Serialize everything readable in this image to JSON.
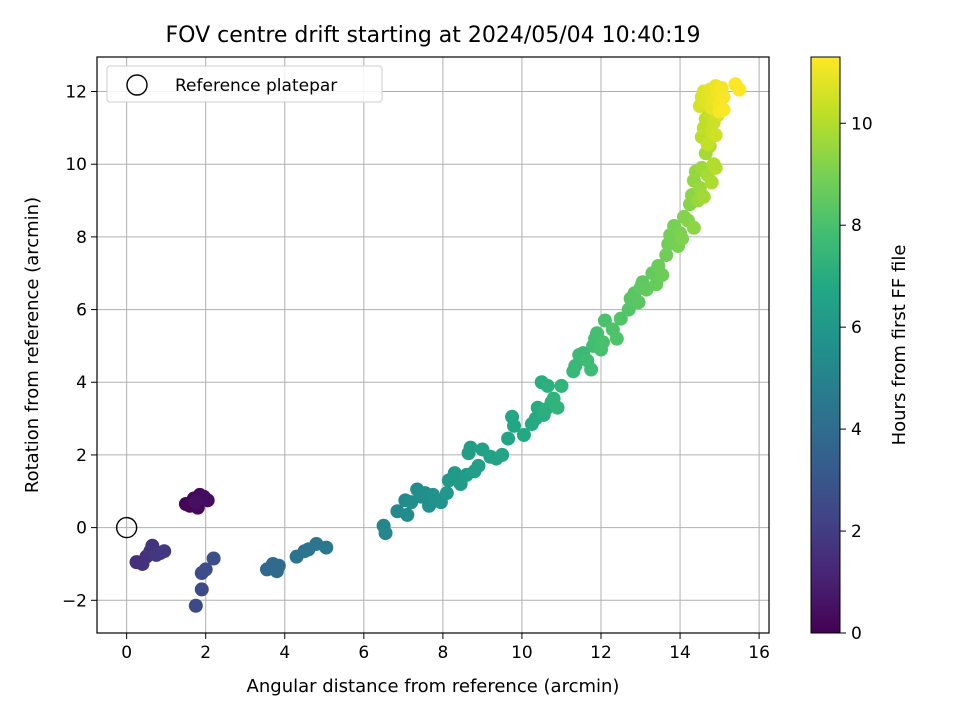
{
  "chart_data": {
    "type": "scatter",
    "title": "FOV centre drift starting at 2024/05/04 10:40:19",
    "xlabel": "Angular distance from reference (arcmin)",
    "ylabel": "Rotation from reference (arcmin)",
    "xlim": [
      -0.75,
      16.25
    ],
    "ylim": [
      -2.9,
      12.95
    ],
    "xticks": [
      0,
      2,
      4,
      6,
      8,
      10,
      12,
      14,
      16
    ],
    "yticks": [
      -2,
      0,
      2,
      4,
      6,
      8,
      10,
      12
    ],
    "xtick_labels": [
      "0",
      "2",
      "4",
      "6",
      "8",
      "10",
      "12",
      "14",
      "16"
    ],
    "ytick_labels": [
      "−2",
      "0",
      "2",
      "4",
      "6",
      "8",
      "10",
      "12"
    ],
    "grid": true,
    "legend": {
      "placement": "upper-left",
      "entries": [
        "Reference platepar"
      ]
    },
    "reference_point": {
      "x": 0,
      "y": 0,
      "name": "Reference platepar"
    },
    "colorbar": {
      "label": "Hours from first FF file",
      "colormap": "viridis",
      "range": [
        0,
        11.3
      ],
      "ticks": [
        0,
        2,
        4,
        6,
        8,
        10
      ],
      "tick_labels": [
        "0",
        "2",
        "4",
        "6",
        "8",
        "10"
      ]
    },
    "points": [
      [
        1.5,
        0.65,
        0.1
      ],
      [
        1.6,
        0.6,
        0.15
      ],
      [
        1.7,
        0.8,
        0.2
      ],
      [
        1.8,
        0.55,
        0.25
      ],
      [
        1.85,
        0.9,
        0.3
      ],
      [
        1.95,
        0.85,
        0.35
      ],
      [
        2.05,
        0.75,
        0.4
      ],
      [
        1.75,
        0.7,
        0.45
      ],
      [
        0.25,
        -0.95,
        1.5
      ],
      [
        0.4,
        -1.0,
        1.55
      ],
      [
        0.5,
        -0.8,
        1.6
      ],
      [
        0.6,
        -0.65,
        1.65
      ],
      [
        0.65,
        -0.5,
        1.7
      ],
      [
        0.75,
        -0.75,
        1.75
      ],
      [
        0.85,
        -0.7,
        1.8
      ],
      [
        0.95,
        -0.65,
        1.85
      ],
      [
        1.75,
        -2.15,
        2.5
      ],
      [
        1.9,
        -1.7,
        2.55
      ],
      [
        1.9,
        -1.25,
        2.6
      ],
      [
        2.0,
        -1.15,
        2.65
      ],
      [
        2.2,
        -0.85,
        2.7
      ],
      [
        3.55,
        -1.15,
        3.8
      ],
      [
        3.7,
        -1.0,
        3.85
      ],
      [
        3.8,
        -1.2,
        3.9
      ],
      [
        3.85,
        -1.05,
        3.95
      ],
      [
        4.3,
        -0.8,
        4.3
      ],
      [
        4.5,
        -0.65,
        4.35
      ],
      [
        4.6,
        -0.6,
        4.4
      ],
      [
        4.8,
        -0.45,
        4.45
      ],
      [
        5.05,
        -0.55,
        4.5
      ],
      [
        6.5,
        0.05,
        5.1
      ],
      [
        6.55,
        -0.15,
        5.15
      ],
      [
        6.85,
        0.45,
        5.3
      ],
      [
        7.05,
        0.75,
        5.35
      ],
      [
        7.1,
        0.35,
        5.4
      ],
      [
        7.2,
        0.7,
        5.45
      ],
      [
        7.35,
        1.05,
        5.5
      ],
      [
        7.45,
        0.85,
        5.55
      ],
      [
        7.55,
        0.95,
        5.6
      ],
      [
        7.65,
        0.6,
        5.65
      ],
      [
        7.75,
        0.9,
        5.7
      ],
      [
        7.85,
        0.75,
        5.75
      ],
      [
        7.95,
        0.7,
        5.8
      ],
      [
        8.1,
        0.95,
        6.0
      ],
      [
        8.15,
        1.3,
        6.05
      ],
      [
        8.3,
        1.5,
        6.1
      ],
      [
        8.45,
        1.2,
        6.15
      ],
      [
        8.6,
        1.45,
        6.2
      ],
      [
        8.65,
        2.05,
        6.25
      ],
      [
        8.7,
        2.2,
        6.3
      ],
      [
        8.8,
        1.55,
        6.35
      ],
      [
        8.9,
        1.7,
        6.4
      ],
      [
        9.0,
        2.15,
        6.45
      ],
      [
        9.2,
        1.95,
        6.5
      ],
      [
        9.35,
        1.9,
        6.55
      ],
      [
        9.5,
        2.0,
        6.6
      ],
      [
        9.65,
        2.45,
        6.65
      ],
      [
        9.75,
        3.05,
        6.7
      ],
      [
        9.8,
        2.8,
        6.75
      ],
      [
        10.05,
        2.55,
        6.8
      ],
      [
        10.25,
        2.85,
        6.85
      ],
      [
        10.35,
        3.0,
        6.9
      ],
      [
        10.4,
        3.3,
        6.95
      ],
      [
        10.5,
        4.0,
        7.0
      ],
      [
        10.55,
        3.1,
        7.05
      ],
      [
        10.6,
        3.25,
        7.1
      ],
      [
        10.65,
        3.9,
        7.15
      ],
      [
        10.75,
        3.45,
        7.2
      ],
      [
        10.8,
        3.55,
        7.25
      ],
      [
        10.9,
        3.3,
        7.3
      ],
      [
        11.0,
        3.9,
        7.35
      ],
      [
        11.3,
        4.3,
        7.5
      ],
      [
        11.35,
        4.45,
        7.55
      ],
      [
        11.45,
        4.75,
        7.6
      ],
      [
        11.55,
        4.8,
        7.65
      ],
      [
        11.65,
        4.6,
        7.7
      ],
      [
        11.75,
        4.35,
        7.75
      ],
      [
        11.8,
        5.0,
        7.8
      ],
      [
        11.85,
        5.2,
        7.85
      ],
      [
        11.9,
        5.35,
        7.9
      ],
      [
        12.0,
        4.9,
        7.95
      ],
      [
        12.05,
        5.1,
        8.0
      ],
      [
        12.1,
        5.7,
        8.05
      ],
      [
        12.3,
        5.45,
        8.1
      ],
      [
        12.4,
        5.2,
        8.15
      ],
      [
        12.5,
        5.75,
        8.2
      ],
      [
        12.7,
        6.0,
        8.25
      ],
      [
        12.75,
        6.3,
        8.3
      ],
      [
        12.85,
        6.45,
        8.35
      ],
      [
        12.95,
        6.2,
        8.4
      ],
      [
        13.0,
        6.6,
        8.45
      ],
      [
        13.05,
        6.75,
        8.5
      ],
      [
        13.15,
        6.55,
        8.55
      ],
      [
        13.3,
        7.0,
        8.6
      ],
      [
        13.4,
        6.7,
        8.65
      ],
      [
        13.45,
        7.2,
        8.7
      ],
      [
        13.55,
        6.95,
        8.75
      ],
      [
        13.65,
        7.5,
        8.8
      ],
      [
        13.7,
        7.8,
        8.85
      ],
      [
        13.75,
        8.05,
        8.9
      ],
      [
        13.85,
        8.3,
        8.95
      ],
      [
        13.95,
        7.75,
        9.0
      ],
      [
        14.0,
        8.1,
        9.05
      ],
      [
        14.05,
        7.95,
        9.1
      ],
      [
        14.1,
        8.55,
        9.15
      ],
      [
        14.2,
        8.45,
        9.2
      ],
      [
        14.25,
        8.9,
        9.25
      ],
      [
        14.3,
        9.15,
        9.3
      ],
      [
        14.35,
        8.25,
        9.35
      ],
      [
        14.35,
        9.55,
        9.45
      ],
      [
        14.4,
        9.8,
        9.5
      ],
      [
        14.45,
        9.0,
        9.55
      ],
      [
        14.5,
        9.35,
        9.6
      ],
      [
        14.55,
        9.9,
        9.65
      ],
      [
        14.6,
        9.1,
        9.7
      ],
      [
        14.65,
        10.3,
        9.75
      ],
      [
        14.7,
        9.7,
        9.8
      ],
      [
        14.75,
        10.5,
        9.85
      ],
      [
        14.8,
        9.5,
        9.9
      ],
      [
        14.85,
        10.0,
        9.95
      ],
      [
        14.9,
        9.9,
        10.0
      ],
      [
        14.55,
        10.75,
        10.1
      ],
      [
        14.6,
        11.0,
        10.15
      ],
      [
        14.65,
        11.25,
        10.2
      ],
      [
        14.7,
        10.55,
        10.25
      ],
      [
        14.75,
        11.45,
        10.3
      ],
      [
        14.8,
        10.9,
        10.35
      ],
      [
        14.85,
        11.15,
        10.4
      ],
      [
        14.9,
        10.8,
        10.45
      ],
      [
        14.95,
        11.35,
        10.5
      ],
      [
        14.5,
        11.6,
        10.6
      ],
      [
        14.55,
        11.85,
        10.65
      ],
      [
        14.6,
        12.0,
        10.7
      ],
      [
        14.65,
        11.7,
        10.75
      ],
      [
        14.7,
        11.9,
        10.8
      ],
      [
        14.75,
        12.05,
        10.85
      ],
      [
        14.8,
        11.55,
        10.9
      ],
      [
        14.85,
        11.75,
        10.95
      ],
      [
        14.9,
        12.15,
        11.0
      ],
      [
        14.95,
        11.95,
        11.05
      ],
      [
        15.0,
        11.65,
        11.1
      ],
      [
        15.05,
        12.1,
        11.15
      ],
      [
        15.1,
        11.85,
        11.2
      ],
      [
        15.0,
        11.45,
        11.22
      ],
      [
        15.1,
        11.5,
        11.24
      ],
      [
        15.4,
        12.2,
        11.26
      ],
      [
        15.5,
        12.05,
        11.3
      ]
    ]
  }
}
